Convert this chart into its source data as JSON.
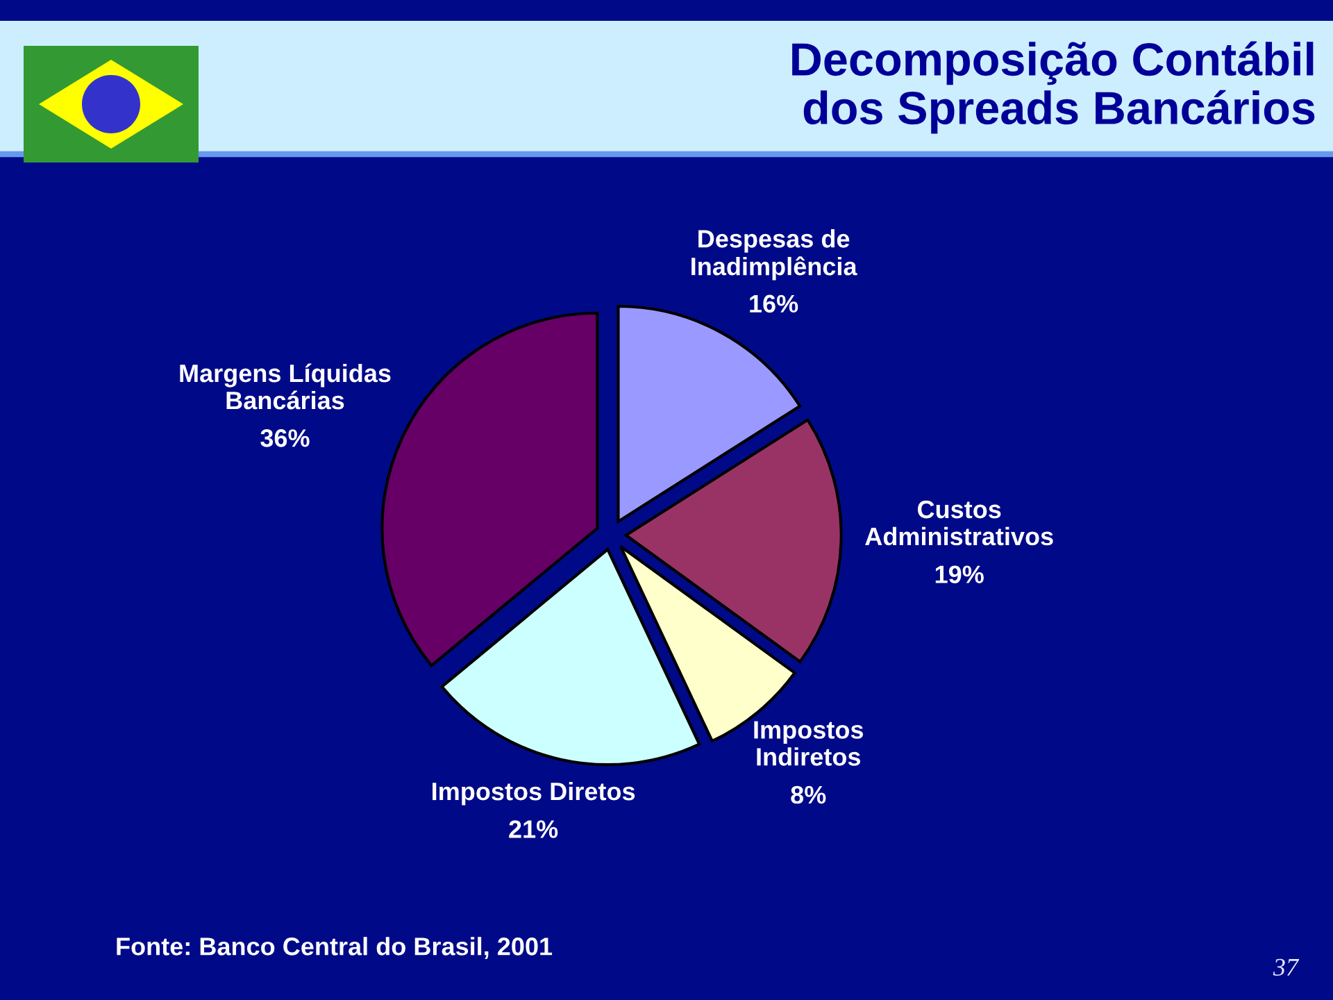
{
  "chart_data": {
    "type": "pie",
    "title": "Decomposição Contábil\ndos Spreads Bancários",
    "categories": [
      "Despesas de\nInadimplência",
      "Custos\nAdministrativos",
      "Impostos\nIndiretos",
      "Impostos Diretos",
      "Margens Líquidas\nBancárias"
    ],
    "values": [
      16,
      19,
      8,
      21,
      36
    ],
    "colors": [
      "#9999ff",
      "#993366",
      "#ffffcc",
      "#ccffff",
      "#660066"
    ],
    "value_labels": [
      "16%",
      "19%",
      "8%",
      "21%",
      "36%"
    ],
    "annotations": [
      "Fonte: Banco Central do Brasil, 2001",
      "37"
    ]
  }
}
